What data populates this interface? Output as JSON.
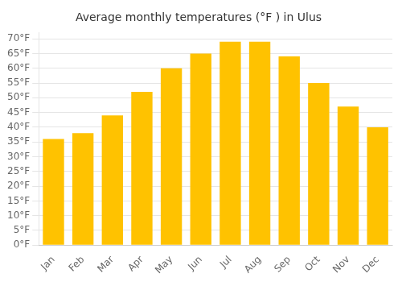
{
  "chart_data": {
    "type": "bar",
    "title": "Average monthly temperatures (°F ) in Ulus",
    "categories": [
      "Jan",
      "Feb",
      "Mar",
      "Apr",
      "May",
      "Jun",
      "Jul",
      "Aug",
      "Sep",
      "Oct",
      "Nov",
      "Dec"
    ],
    "values": [
      36,
      38,
      44,
      52,
      60,
      65,
      69,
      69,
      64,
      55,
      47,
      40
    ],
    "color": "#FFC200",
    "ylim": [
      0,
      72
    ],
    "yticks": [
      {
        "value": 0,
        "label": "0°F"
      },
      {
        "value": 5,
        "label": "5°F"
      },
      {
        "value": 10,
        "label": "10°F"
      },
      {
        "value": 15,
        "label": "15°F"
      },
      {
        "value": 20,
        "label": "20°F"
      },
      {
        "value": 25,
        "label": "25°F"
      },
      {
        "value": 30,
        "label": "30°F"
      },
      {
        "value": 35,
        "label": "35°F"
      },
      {
        "value": 40,
        "label": "40°F"
      },
      {
        "value": 45,
        "label": "45°F"
      },
      {
        "value": 50,
        "label": "50°F"
      },
      {
        "value": 55,
        "label": "55°F"
      },
      {
        "value": 60,
        "label": "60°F"
      },
      {
        "value": 65,
        "label": "65°F"
      },
      {
        "value": 70,
        "label": "70°F"
      }
    ],
    "grid": "y"
  }
}
